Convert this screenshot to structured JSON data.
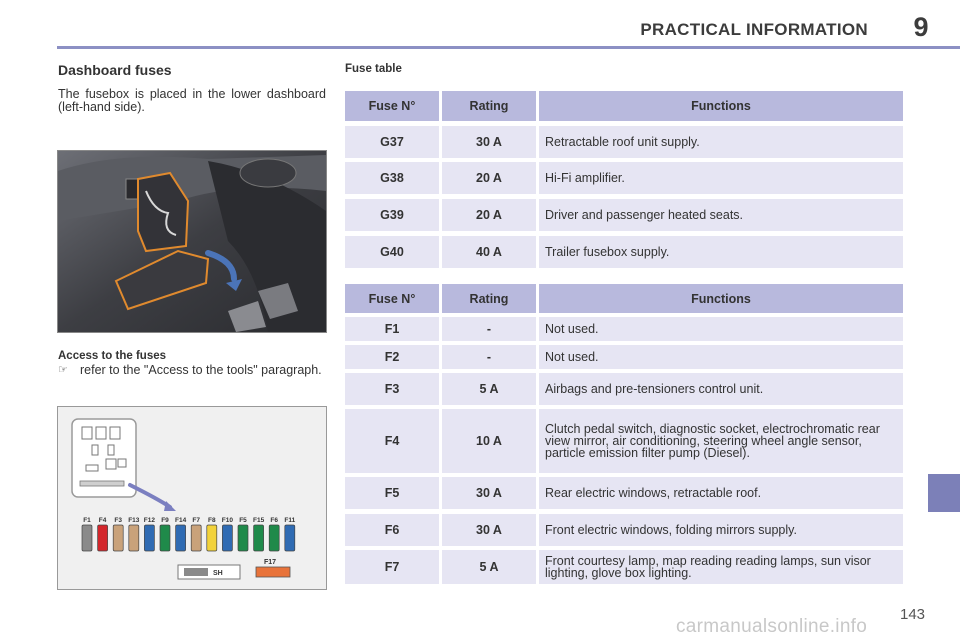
{
  "header": {
    "title": "PRACTICAL INFORMATION",
    "chapter": "9"
  },
  "left": {
    "heading": "Dashboard fuses",
    "intro": "The fusebox is placed in the lower dashboard (left-hand side).",
    "access_heading": "Access to the fuses",
    "bullet_text": "refer to the \"Access to the tools\" paragraph."
  },
  "diagram": {
    "fuse_labels": [
      "F1",
      "F4",
      "F3",
      "F13",
      "F12",
      "F9",
      "F14",
      "F7",
      "F8",
      "F10",
      "F5",
      "F15",
      "F6",
      "F11"
    ],
    "fuse_colors": [
      "#8a8a8a",
      "#d3262b",
      "#c9a27a",
      "#c9a27a",
      "#2f6bb3",
      "#1f8a4a",
      "#2f6bb3",
      "#c9a27a",
      "#f2d23a",
      "#2f6bb3",
      "#1f8a4a",
      "#1f8a4a",
      "#1f8a4a",
      "#2f6bb3"
    ],
    "sh_label": "SH",
    "f17_label": "F17",
    "f17_color": "#e8733a"
  },
  "table": {
    "title": "Fuse table",
    "headers": {
      "fuse": "Fuse N°",
      "rating": "Rating",
      "functions": "Functions"
    },
    "group1": [
      {
        "fuse": "G37",
        "rating": "30 A",
        "function": "Retractable roof unit supply."
      },
      {
        "fuse": "G38",
        "rating": "20 A",
        "function": "Hi-Fi amplifier."
      },
      {
        "fuse": "G39",
        "rating": "20 A",
        "function": "Driver and passenger heated seats."
      },
      {
        "fuse": "G40",
        "rating": "40 A",
        "function": "Trailer fusebox supply."
      }
    ],
    "group2": [
      {
        "fuse": "F1",
        "rating": "-",
        "function": "Not used."
      },
      {
        "fuse": "F2",
        "rating": "-",
        "function": "Not used."
      },
      {
        "fuse": "F3",
        "rating": "5 A",
        "function": "Airbags and pre-tensioners control unit."
      },
      {
        "fuse": "F4",
        "rating": "10 A",
        "function": "Clutch pedal switch, diagnostic socket, electrochromatic rear view mirror, air conditioning, steering wheel angle sensor, particle emission filter pump (Diesel)."
      },
      {
        "fuse": "F5",
        "rating": "30 A",
        "function": "Rear electric windows, retractable roof."
      },
      {
        "fuse": "F6",
        "rating": "30 A",
        "function": "Front electric windows, folding mirrors supply."
      },
      {
        "fuse": "F7",
        "rating": "5 A",
        "function": "Front courtesy lamp, map reading reading lamps, sun visor lighting, glove box lighting."
      }
    ]
  },
  "footer": {
    "page_number": "143",
    "watermark": "carmanualsonline.info"
  }
}
